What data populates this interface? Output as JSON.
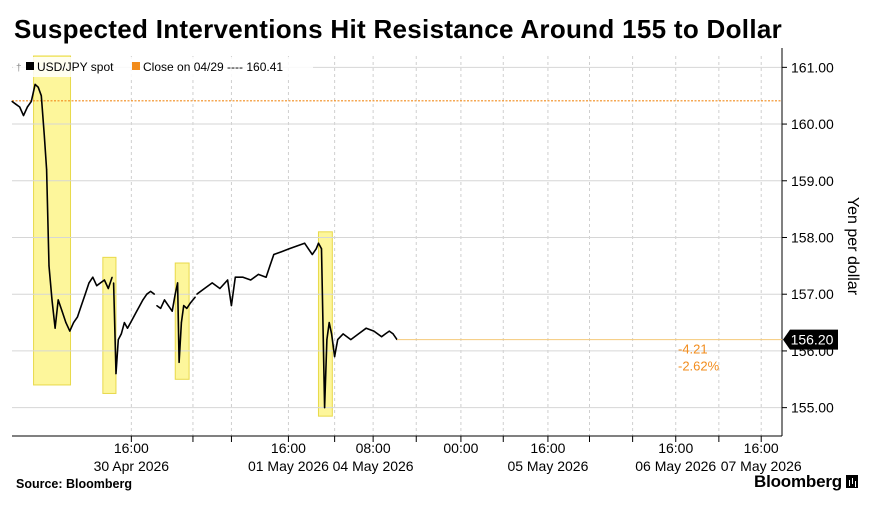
{
  "header": {
    "title": "Suspected Interventions Hit Resistance Around 155 to Dollar"
  },
  "footer": {
    "source": "Source: Bloomberg",
    "brand": "Bloomberg"
  },
  "chart_data": {
    "type": "line",
    "title": "Suspected Interventions Hit Resistance Around 155 to Dollar",
    "xlabel": "",
    "ylabel": "Yen per dollar",
    "ylim": [
      154.5,
      161.2
    ],
    "yticks": [
      {
        "v": 161,
        "label": "161.00"
      },
      {
        "v": 160,
        "label": "160.00"
      },
      {
        "v": 159,
        "label": "159.00"
      },
      {
        "v": 158,
        "label": "158.00"
      },
      {
        "v": 157,
        "label": "157.00"
      },
      {
        "v": 156,
        "label": "156.00"
      },
      {
        "v": 155,
        "label": "155.00"
      }
    ],
    "xlim": [
      0,
      100
    ],
    "xticks": [
      {
        "x": 15.5,
        "time": "16:00",
        "date": "30 Apr 2026"
      },
      {
        "x": 23.5,
        "time": "",
        "date": ""
      },
      {
        "x": 28.5,
        "time": "",
        "date": ""
      },
      {
        "x": 35.9,
        "time": "16:00",
        "date": "01 May 2026"
      },
      {
        "x": 41.9,
        "time": "",
        "date": ""
      },
      {
        "x": 46.9,
        "time": "08:00",
        "date": "04 May 2026"
      },
      {
        "x": 52.5,
        "time": "",
        "date": ""
      },
      {
        "x": 58.3,
        "time": "00:00",
        "date": ""
      },
      {
        "x": 63.8,
        "time": "",
        "date": ""
      },
      {
        "x": 69.6,
        "time": "16:00",
        "date": "05 May 2026"
      },
      {
        "x": 75.0,
        "time": "",
        "date": ""
      },
      {
        "x": 80.6,
        "time": "",
        "date": ""
      },
      {
        "x": 86.2,
        "time": "16:00",
        "date": "06 May 2026"
      },
      {
        "x": 91.8,
        "time": "",
        "date": ""
      },
      {
        "x": 97.3,
        "time": "16:00",
        "date": "07 May 2026"
      }
    ],
    "legend": {
      "placement": "top-left",
      "items": [
        {
          "label": "USD/JPY spot",
          "color": "#000000"
        },
        {
          "label": "Close on 04/29 ---- 160.41",
          "color": "#f28c1c"
        }
      ]
    },
    "reference_line": {
      "name": "Close on 04/29",
      "value": 160.41,
      "color": "#f28c1c"
    },
    "last_value": {
      "label": "156.20",
      "value": 156.2,
      "change": "-4.21",
      "change_pct": "-2.62%"
    },
    "highlights": [
      {
        "x0": 2.8,
        "x1": 7.6,
        "y0": 155.4,
        "y1": 161.2
      },
      {
        "x0": 11.8,
        "x1": 13.5,
        "y0": 155.25,
        "y1": 157.65
      },
      {
        "x0": 21.2,
        "x1": 23.0,
        "y0": 155.5,
        "y1": 157.55
      },
      {
        "x0": 39.8,
        "x1": 41.6,
        "y0": 154.85,
        "y1": 158.1
      }
    ],
    "series": [
      {
        "name": "USD/JPY spot",
        "color": "#000000",
        "segments": [
          {
            "x": [
              0.0,
              0.5,
              1.0,
              1.5,
              2.0,
              2.5,
              3.0,
              3.4,
              3.8,
              4.2,
              4.5,
              4.8,
              5.2,
              5.6,
              6.0,
              6.5,
              7.0,
              7.5,
              8.0,
              8.5,
              9.0,
              9.5,
              10.0,
              10.5,
              11.0,
              11.5,
              12.0,
              12.5,
              13.0
            ],
            "y": [
              160.4,
              160.35,
              160.3,
              160.15,
              160.3,
              160.4,
              160.7,
              160.65,
              160.5,
              159.8,
              159.2,
              157.5,
              156.9,
              156.4,
              156.9,
              156.7,
              156.5,
              156.35,
              156.5,
              156.6,
              156.8,
              157.0,
              157.2,
              157.3,
              157.15,
              157.2,
              157.25,
              157.1,
              157.3
            ]
          },
          {
            "x": [
              13.2,
              13.5,
              13.8,
              14.2,
              14.6,
              15.0,
              15.4,
              15.8,
              16.2,
              16.6,
              17.0,
              17.5,
              18.0,
              18.5
            ],
            "y": [
              157.2,
              155.6,
              156.2,
              156.3,
              156.5,
              156.4,
              156.5,
              156.6,
              156.7,
              156.8,
              156.9,
              157.0,
              157.05,
              157.0
            ]
          },
          {
            "x": [
              18.8,
              19.3,
              19.8,
              20.3,
              20.8,
              21.2,
              21.5,
              21.7,
              22.0,
              22.3,
              22.7,
              23.2,
              23.8
            ],
            "y": [
              156.8,
              156.75,
              156.9,
              156.8,
              156.7,
              157.0,
              157.2,
              155.8,
              156.5,
              156.8,
              156.75,
              156.85,
              156.95
            ]
          },
          {
            "x": [
              24.0,
              25.0,
              26.0,
              27.0,
              28.0,
              28.5,
              29.0,
              30.0,
              31.0,
              32.0,
              33.0,
              33.5,
              34.0,
              35.0,
              36.0,
              37.0,
              38.0,
              38.5,
              39.0,
              39.5,
              39.8,
              40.2,
              40.6,
              40.9,
              41.2,
              41.5,
              41.9,
              42.3,
              43.0,
              44.0,
              45.0,
              46.0,
              47.0,
              48.0,
              48.5,
              49.0,
              49.5,
              50.0
            ],
            "y": [
              157.0,
              157.1,
              157.2,
              157.1,
              157.25,
              156.8,
              157.3,
              157.3,
              157.25,
              157.35,
              157.3,
              157.5,
              157.7,
              157.75,
              157.8,
              157.85,
              157.9,
              157.8,
              157.7,
              157.8,
              157.9,
              157.8,
              155.0,
              156.2,
              156.5,
              156.3,
              155.9,
              156.2,
              156.3,
              156.2,
              156.3,
              156.4,
              156.35,
              156.25,
              156.3,
              156.35,
              156.3,
              156.2
            ]
          }
        ]
      }
    ]
  }
}
